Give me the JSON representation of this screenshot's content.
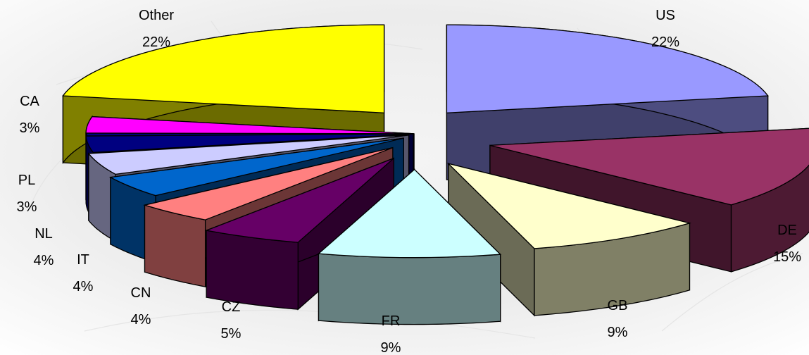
{
  "chart_data": {
    "type": "pie",
    "style": "3d-exploded",
    "categories": [
      "US",
      "DE",
      "GB",
      "FR",
      "CZ",
      "CN",
      "IT",
      "NL",
      "PL",
      "",
      "CA",
      "Other"
    ],
    "values": [
      22,
      15,
      9,
      9,
      5,
      4,
      4,
      4,
      3,
      0.5,
      3,
      22
    ],
    "labels": [
      "22%",
      "15%",
      "9%",
      "9%",
      "5%",
      "4%",
      "4%",
      "4%",
      "3%",
      "",
      "3%",
      "22%"
    ],
    "colors": [
      "#9999FF",
      "#993366",
      "#FFFFCC",
      "#CCFFFF",
      "#660066",
      "#FF8080",
      "#0066CC",
      "#CCCCFF",
      "#000080",
      "#000080",
      "#FF00FF",
      "#FFFF00"
    ],
    "start_angle_deg": 0,
    "direction": "clockwise"
  }
}
